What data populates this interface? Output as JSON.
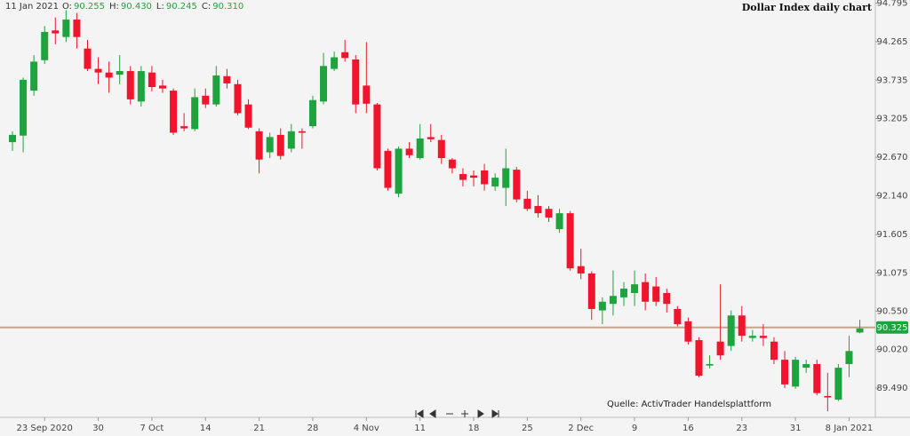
{
  "chart_data": {
    "type": "candlestick",
    "title": "Dollar Index daily chart",
    "source": "Quelle: ActivTrader Handelsplattform",
    "header_date": "11 Jan 2021",
    "ohlc_labels": [
      "O:",
      "H:",
      "L:",
      "C:"
    ],
    "ohlc_value_labels": [
      "90.255",
      "90.430",
      "90.245",
      "90.310"
    ],
    "price_line": 90.325,
    "up_color": "#1ea33e",
    "down_color": "#f2132c",
    "price_line_color": "#c9a28c",
    "categories": [
      null,
      null,
      null,
      "23 Sep 2020",
      null,
      null,
      null,
      null,
      "30",
      null,
      null,
      null,
      null,
      "7 Oct",
      null,
      null,
      null,
      null,
      "14",
      null,
      null,
      null,
      null,
      "21",
      null,
      null,
      null,
      null,
      "28",
      null,
      null,
      null,
      null,
      "4 Nov",
      null,
      null,
      null,
      null,
      "11",
      null,
      null,
      null,
      null,
      "18",
      null,
      null,
      null,
      null,
      "25",
      null,
      null,
      null,
      null,
      "2 Dec",
      null,
      null,
      null,
      null,
      "9",
      null,
      null,
      null,
      null,
      "16",
      null,
      null,
      null,
      null,
      "23",
      null,
      null,
      null,
      null,
      "31",
      null,
      null,
      null,
      null,
      "8 Jan 2021",
      null
    ],
    "open": [
      92.88,
      92.97,
      93.59,
      94.01,
      94.42,
      94.33,
      94.57,
      94.17,
      93.89,
      93.84,
      93.81,
      93.86,
      93.44,
      93.84,
      93.66,
      93.59,
      93.1,
      93.06,
      93.52,
      93.4,
      93.79,
      93.68,
      93.4,
      93.03,
      92.74,
      92.98,
      92.79,
      93.03,
      93.1,
      93.44,
      93.89,
      94.12,
      94.02,
      93.66,
      93.4,
      92.76,
      92.17,
      92.79,
      92.66,
      92.95,
      92.91,
      92.64,
      92.44,
      92.42,
      92.49,
      92.27,
      92.25,
      92.5,
      92.1,
      92.0,
      91.96,
      91.68,
      91.9,
      91.17,
      91.07,
      90.56,
      90.65,
      90.74,
      90.8,
      90.95,
      90.89,
      90.8,
      90.58,
      90.41,
      90.15,
      89.8,
      90.13,
      90.07,
      90.49,
      90.18,
      90.21,
      90.13,
      89.88,
      89.51,
      89.77,
      89.82,
      89.38,
      89.33,
      89.82,
      90.255
    ],
    "high": [
      93.03,
      93.77,
      94.08,
      94.48,
      94.6,
      94.7,
      94.66,
      94.29,
      94.05,
      93.99,
      94.08,
      93.93,
      93.93,
      93.93,
      93.74,
      93.62,
      93.28,
      93.62,
      93.62,
      93.93,
      93.89,
      93.74,
      93.47,
      93.07,
      93.01,
      93.07,
      93.13,
      93.07,
      93.52,
      94.11,
      94.13,
      94.29,
      94.08,
      94.26,
      93.42,
      92.79,
      92.82,
      92.88,
      93.13,
      93.13,
      92.98,
      92.66,
      92.52,
      92.49,
      92.58,
      92.45,
      92.79,
      92.54,
      92.21,
      92.15,
      92.0,
      91.96,
      91.93,
      91.41,
      91.1,
      90.74,
      91.11,
      90.95,
      91.11,
      91.07,
      91.02,
      90.86,
      90.62,
      90.46,
      90.19,
      89.94,
      90.92,
      90.56,
      90.62,
      90.29,
      90.37,
      90.19,
      90.0,
      89.92,
      89.88,
      89.88,
      89.7,
      89.82,
      90.21,
      90.43
    ],
    "low": [
      92.76,
      92.74,
      93.52,
      93.96,
      94.23,
      94.26,
      94.17,
      93.86,
      93.68,
      93.56,
      93.68,
      93.4,
      93.37,
      93.58,
      93.56,
      92.98,
      93.03,
      93.03,
      93.35,
      93.37,
      93.62,
      93.25,
      93.06,
      92.45,
      92.66,
      92.64,
      92.74,
      92.79,
      93.07,
      93.4,
      93.86,
      93.99,
      93.28,
      93.28,
      92.49,
      92.21,
      92.12,
      92.66,
      92.64,
      92.88,
      92.58,
      92.45,
      92.27,
      92.27,
      92.21,
      92.21,
      92.0,
      92.05,
      91.93,
      91.84,
      91.78,
      91.63,
      91.11,
      90.99,
      90.43,
      90.37,
      90.49,
      90.62,
      90.62,
      90.56,
      90.62,
      90.53,
      90.34,
      90.09,
      89.64,
      89.76,
      89.88,
      90.0,
      90.13,
      90.13,
      90.07,
      89.82,
      89.49,
      89.48,
      89.7,
      89.39,
      89.17,
      89.31,
      89.64,
      90.245
    ],
    "close": [
      92.98,
      93.74,
      93.99,
      94.4,
      94.38,
      94.57,
      94.33,
      93.89,
      93.84,
      93.77,
      93.86,
      93.47,
      93.86,
      93.64,
      93.62,
      93.01,
      93.07,
      93.5,
      93.4,
      93.8,
      93.69,
      93.28,
      93.08,
      92.64,
      92.95,
      92.69,
      93.03,
      93.01,
      93.46,
      93.93,
      94.05,
      94.04,
      93.4,
      93.41,
      92.52,
      92.25,
      92.79,
      92.7,
      92.93,
      92.92,
      92.66,
      92.52,
      92.36,
      92.39,
      92.3,
      92.39,
      92.52,
      92.09,
      91.96,
      91.9,
      91.84,
      91.9,
      91.14,
      91.07,
      90.58,
      90.68,
      90.76,
      90.86,
      90.92,
      90.68,
      90.68,
      90.65,
      90.37,
      90.13,
      89.66,
      89.82,
      89.94,
      90.49,
      90.21,
      90.21,
      90.18,
      89.88,
      89.54,
      89.88,
      89.82,
      89.42,
      89.36,
      89.77,
      90.0,
      90.31
    ],
    "ylim": [
      89.11,
      94.84
    ],
    "yticks": [
      94.795,
      94.265,
      93.735,
      93.205,
      {
        "value": 92.67,
        "label": "92.670"
      },
      {
        "value": 92.14,
        "label": "92.140"
      },
      91.605,
      91.075,
      {
        "value": 90.55,
        "label": "90.550"
      },
      {
        "value": 90.02,
        "label": "90.020"
      },
      {
        "value": 89.49,
        "label": "89.490"
      }
    ],
    "grid": false
  }
}
